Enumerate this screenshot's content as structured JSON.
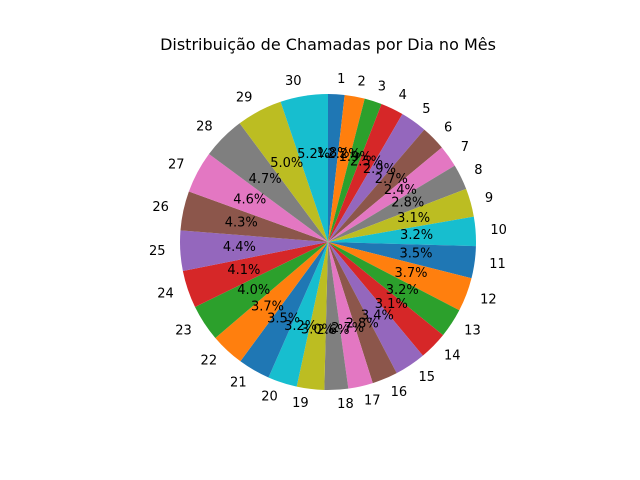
{
  "chart_data": {
    "type": "pie",
    "title": "Distribuição de Chamadas por Dia no Mês",
    "start_angle_deg": 90,
    "direction": "clockwise",
    "categories": [
      "1",
      "2",
      "3",
      "4",
      "5",
      "6",
      "7",
      "8",
      "9",
      "10",
      "11",
      "12",
      "13",
      "14",
      "15",
      "16",
      "17",
      "18",
      "19",
      "20",
      "21",
      "22",
      "23",
      "24",
      "25",
      "26",
      "27",
      "28",
      "29",
      "30"
    ],
    "values": [
      1.8,
      2.2,
      1.9,
      2.5,
      2.9,
      2.7,
      2.4,
      2.8,
      3.1,
      3.2,
      3.5,
      3.7,
      3.2,
      3.1,
      3.4,
      2.8,
      2.7,
      2.6,
      3.0,
      3.2,
      3.5,
      3.7,
      4.0,
      4.1,
      4.4,
      4.3,
      4.6,
      4.7,
      5.0,
      5.2
    ],
    "labels": [
      "1.8%",
      "2.2%",
      "1.9%",
      "2.5%",
      "2.9%",
      "2.7%",
      "2.4%",
      "2.8%",
      "3.1%",
      "3.2%",
      "3.5%",
      "3.7%",
      "3.2%",
      "3.1%",
      "3.4%",
      "2.8%",
      "2.7%",
      "2.6%",
      "3.0%",
      "3.2%",
      "3.5%",
      "3.7%",
      "4.0%",
      "4.1%",
      "4.4%",
      "4.3%",
      "4.6%",
      "4.7%",
      "5.0%",
      "5.2%"
    ],
    "colors": [
      "#1f77b4",
      "#ff7f0e",
      "#2ca02c",
      "#d62728",
      "#9467bd",
      "#8c564b",
      "#e377c2",
      "#7f7f7f",
      "#bcbd22",
      "#17becf"
    ]
  }
}
